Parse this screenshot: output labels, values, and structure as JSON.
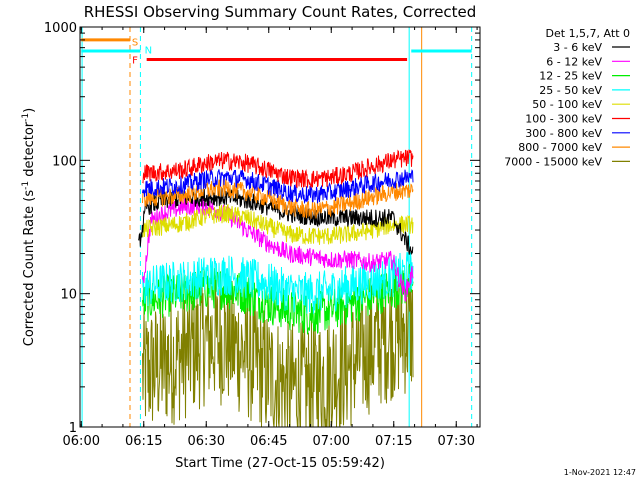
{
  "chart_data": {
    "type": "line",
    "title": "RHESSI Observing Summary Count Rates, Corrected",
    "xlabel": "Start Time (27-Oct-15 05:59:42)",
    "ylabel": "Corrected Count Rate (s-1 detector-1)",
    "ylabel_parts": {
      "main": "Corrected Count Rate (s",
      "sup1": "-1",
      "mid": " detector",
      "sup2": "-1",
      "end": ")"
    },
    "yscale": "log",
    "ylim": [
      1,
      1000
    ],
    "xlim_minutes": [
      0,
      96
    ],
    "x_ticks": [
      {
        "label": "06:00",
        "minute": 0.3
      },
      {
        "label": "06:15",
        "minute": 15.3
      },
      {
        "label": "06:30",
        "minute": 30.3
      },
      {
        "label": "06:45",
        "minute": 45.3
      },
      {
        "label": "07:00",
        "minute": 60.3
      },
      {
        "label": "07:15",
        "minute": 75.3
      },
      {
        "label": "07:30",
        "minute": 90.3
      }
    ],
    "y_ticks": [
      {
        "label": "1",
        "value": 1
      },
      {
        "label": "10",
        "value": 10
      },
      {
        "label": "100",
        "value": 100
      },
      {
        "label": "1000",
        "value": 1000
      }
    ],
    "legend": {
      "placement": "right",
      "header": "Det 1,5,7, Att 0",
      "entries": [
        {
          "label": "3 - 6 keV",
          "color": "#000000"
        },
        {
          "label": "6 - 12 keV",
          "color": "#ff00ff"
        },
        {
          "label": "12 - 25 keV",
          "color": "#00ee00"
        },
        {
          "label": "25 - 50 keV",
          "color": "#00ffff"
        },
        {
          "label": "50 - 100 keV",
          "color": "#dddd00"
        },
        {
          "label": "100 - 300 keV",
          "color": "#ff0000"
        },
        {
          "label": "300 - 800 keV",
          "color": "#0000ff"
        },
        {
          "label": "800 - 7000 keV",
          "color": "#ff8800"
        },
        {
          "label": "7000 - 15000 keV",
          "color": "#808000"
        }
      ]
    },
    "series": [
      {
        "name": "3 - 6 keV",
        "color": "#000000",
        "x": [
          14,
          16,
          20,
          25,
          30,
          35,
          40,
          45,
          50,
          55,
          60,
          65,
          70,
          75,
          80
        ],
        "y": [
          22,
          45,
          50,
          52,
          53,
          53,
          50,
          45,
          40,
          38,
          37,
          37,
          37,
          37,
          20
        ]
      },
      {
        "name": "6 - 12 keV",
        "color": "#ff00ff",
        "x": [
          15,
          17,
          20,
          25,
          30,
          33,
          36,
          40,
          45,
          50,
          55,
          60,
          65,
          70,
          75,
          78,
          80
        ],
        "y": [
          11,
          35,
          40,
          45,
          45,
          42,
          38,
          30,
          24,
          20,
          19,
          18,
          18,
          17,
          18,
          10,
          15
        ]
      },
      {
        "name": "12 - 25 keV",
        "color": "#00ee00",
        "x": [
          15,
          20,
          25,
          30,
          35,
          40,
          45,
          50,
          55,
          60,
          65,
          70,
          75,
          80
        ],
        "y": [
          8.5,
          9.5,
          10,
          11,
          11,
          10,
          8.5,
          7.5,
          7,
          7.5,
          8.5,
          9.5,
          11,
          12
        ]
      },
      {
        "name": "25 - 50 keV",
        "color": "#00ffff",
        "x": [
          15,
          20,
          25,
          30,
          35,
          40,
          45,
          50,
          55,
          60,
          65,
          70,
          75,
          80
        ],
        "y": [
          11,
          12,
          12.5,
          13.5,
          14,
          13,
          12,
          10.5,
          10,
          10.5,
          11.5,
          12.5,
          13.5,
          15
        ]
      },
      {
        "name": "50 - 100 keV",
        "color": "#dddd00",
        "x": [
          15,
          20,
          25,
          30,
          35,
          40,
          45,
          50,
          55,
          60,
          65,
          70,
          75,
          80
        ],
        "y": [
          30,
          32,
          34,
          38,
          40,
          37,
          32,
          28,
          27,
          27,
          28,
          30,
          33,
          33
        ]
      },
      {
        "name": "100 - 300 keV",
        "color": "#ff0000",
        "x": [
          15,
          20,
          25,
          30,
          35,
          40,
          45,
          50,
          55,
          60,
          65,
          70,
          75,
          80
        ],
        "y": [
          80,
          82,
          85,
          95,
          100,
          95,
          85,
          75,
          72,
          74,
          80,
          90,
          100,
          105
        ]
      },
      {
        "name": "300 - 800 keV",
        "color": "#0000ff",
        "x": [
          15,
          20,
          25,
          30,
          35,
          40,
          45,
          50,
          55,
          60,
          65,
          70,
          75,
          80
        ],
        "y": [
          62,
          63,
          66,
          72,
          75,
          72,
          65,
          57,
          55,
          57,
          62,
          67,
          72,
          75
        ]
      },
      {
        "name": "800 - 7000 keV",
        "color": "#ff8800",
        "x": [
          15,
          20,
          25,
          30,
          35,
          40,
          45,
          50,
          55,
          60,
          65,
          70,
          75,
          80
        ],
        "y": [
          52,
          53,
          55,
          60,
          62,
          58,
          52,
          45,
          42,
          44,
          48,
          53,
          58,
          60
        ]
      },
      {
        "name": "7000 - 15000 keV",
        "color": "#808000",
        "x": [
          15,
          20,
          25,
          30,
          35,
          40,
          45,
          50,
          55,
          60,
          65,
          70,
          75,
          80
        ],
        "y": [
          2.5,
          3,
          3.5,
          4.5,
          4.5,
          3.5,
          2.5,
          2,
          2,
          2.5,
          3,
          4,
          5,
          5.5
        ]
      }
    ],
    "flag_bars": [
      {
        "label": "S",
        "color": "#ff8800",
        "start_minute": 0.3,
        "end_minute": 12,
        "value": 800
      },
      {
        "label": "N",
        "color": "#00ffff",
        "start_minute": 0.3,
        "end_minute": 14.5,
        "value": 660
      },
      {
        "label": "N",
        "color": "#00ffff",
        "start_minute": 79.5,
        "end_minute": 94,
        "value": 660
      },
      {
        "label": "F",
        "color": "#ff0000",
        "start_minute": 16,
        "end_minute": 78.5,
        "value": 570
      }
    ],
    "flag_text": [
      {
        "label": "S",
        "color": "#ff8800",
        "minute": 13.2,
        "value": 780
      },
      {
        "label": "N",
        "color": "#00ffff",
        "minute": 16.4,
        "value": 680
      },
      {
        "label": "F",
        "color": "#ff0000",
        "minute": 13.2,
        "value": 570
      }
    ],
    "vertical_markers": [
      {
        "minute": 0.5,
        "color": "#00ffff",
        "style": "solid"
      },
      {
        "minute": 12,
        "color": "#ff8800",
        "style": "dashed"
      },
      {
        "minute": 14.5,
        "color": "#00ffff",
        "style": "dashed"
      },
      {
        "minute": 79,
        "color": "#00ffff",
        "style": "solid"
      },
      {
        "minute": 82,
        "color": "#ff8800",
        "style": "solid"
      },
      {
        "minute": 94,
        "color": "#00ffff",
        "style": "dashed"
      }
    ],
    "footer_date": "1-Nov-2021 12:47",
    "grid": false
  }
}
